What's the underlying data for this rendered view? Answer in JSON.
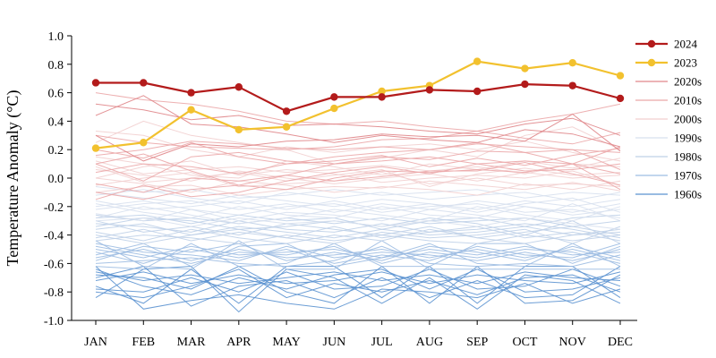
{
  "chart_data": {
    "type": "line",
    "title": "",
    "xlabel": "",
    "ylabel": "Temperature Anomaly (°C)",
    "categories": [
      "JAN",
      "FEB",
      "MAR",
      "APR",
      "MAY",
      "JUN",
      "JUL",
      "AUG",
      "SEP",
      "OCT",
      "NOV",
      "DEC"
    ],
    "ylim": [
      -1.0,
      1.0
    ],
    "yticks": [
      "-1.0",
      "-0.8",
      "-0.6",
      "-0.4",
      "-0.2",
      "0.0",
      "0.2",
      "0.4",
      "0.6",
      "0.8",
      "1.0"
    ],
    "grid": false,
    "legend_position": "right",
    "series": [
      {
        "name": "2024",
        "color": "#b31b1b",
        "markers": true,
        "values": [
          0.67,
          0.67,
          0.6,
          0.64,
          0.47,
          0.57,
          0.57,
          0.62,
          0.61,
          0.66,
          0.65,
          0.56
        ]
      },
      {
        "name": "2023",
        "color": "#f2c12e",
        "markers": true,
        "values": [
          0.21,
          0.25,
          0.48,
          0.34,
          0.36,
          0.49,
          0.61,
          0.65,
          0.82,
          0.77,
          0.81,
          0.72
        ]
      },
      {
        "name": "2020s",
        "color": "#e0868a",
        "markers": false,
        "values": [
          [
            0.52,
            0.48,
            0.41,
            0.44,
            0.37,
            0.38,
            0.36,
            0.33,
            0.31,
            0.38,
            0.42,
            0.3
          ],
          [
            0.44,
            0.58,
            0.38,
            0.36,
            0.31,
            0.25,
            0.3,
            0.27,
            0.25,
            0.34,
            0.31,
            0.22
          ],
          [
            0.3,
            0.12,
            0.24,
            0.22,
            0.26,
            0.27,
            0.31,
            0.29,
            0.3,
            0.26,
            0.45,
            0.19
          ]
        ]
      },
      {
        "name": "2010s",
        "color": "#eba7a8",
        "markers": false,
        "values": [
          [
            0.6,
            0.55,
            0.52,
            0.47,
            0.4,
            0.38,
            0.4,
            0.36,
            0.33,
            0.4,
            0.45,
            0.52
          ],
          [
            0.3,
            0.25,
            0.22,
            0.21,
            0.2,
            0.22,
            0.27,
            0.28,
            0.33,
            0.28,
            0.24,
            0.32
          ],
          [
            0.16,
            0.2,
            0.26,
            0.24,
            0.21,
            0.2,
            0.22,
            0.2,
            0.24,
            0.22,
            0.2,
            0.18
          ],
          [
            0.1,
            -0.02,
            0.15,
            0.18,
            0.12,
            0.1,
            0.15,
            0.13,
            0.19,
            0.18,
            0.2,
            0.06
          ],
          [
            0.04,
            0.1,
            0.08,
            0.03,
            0.1,
            0.15,
            0.18,
            0.2,
            0.25,
            0.18,
            0.1,
            0.22
          ],
          [
            -0.04,
            -0.1,
            0.0,
            -0.02,
            0.02,
            0.1,
            0.12,
            0.15,
            0.1,
            0.12,
            0.1,
            0.03
          ],
          [
            0.1,
            0.17,
            0.05,
            -0.05,
            -0.08,
            0.0,
            0.05,
            0.04,
            0.06,
            0.04,
            0.1,
            -0.08
          ],
          [
            -0.1,
            -0.15,
            -0.08,
            -0.05,
            0.02,
            -0.02,
            0.01,
            0.05,
            0.05,
            0.11,
            0.03,
            -0.05
          ],
          [
            -0.15,
            -0.05,
            -0.13,
            -0.1,
            -0.02,
            0.04,
            0.08,
            0.03,
            0.1,
            0.05,
            0.06,
            0.1
          ],
          [
            0.2,
            0.14,
            0.25,
            0.15,
            0.1,
            0.12,
            0.16,
            0.08,
            0.14,
            0.09,
            0.16,
            0.21
          ]
        ]
      },
      {
        "name": "2000s",
        "color": "#f2cfcf",
        "markers": false,
        "values": [
          [
            0.0,
            0.08,
            0.12,
            0.02,
            0.06,
            0.03,
            -0.03,
            0.0,
            0.02,
            0.0,
            0.05,
            -0.05
          ],
          [
            0.06,
            0.02,
            -0.02,
            0.05,
            0.0,
            -0.04,
            0.0,
            0.03,
            -0.02,
            0.04,
            0.0,
            0.02
          ],
          [
            -0.05,
            0.0,
            0.04,
            -0.06,
            -0.04,
            -0.02,
            0.04,
            -0.04,
            0.0,
            -0.05,
            -0.04,
            -0.06
          ],
          [
            0.12,
            0.03,
            0.06,
            0.08,
            0.04,
            0.06,
            0.09,
            0.05,
            0.08,
            0.03,
            0.1,
            0.08
          ],
          [
            -0.1,
            -0.06,
            -0.05,
            -0.12,
            -0.08,
            -0.06,
            -0.07,
            -0.02,
            -0.05,
            -0.08,
            -0.03,
            -0.09
          ],
          [
            0.15,
            0.1,
            0.02,
            0.0,
            0.12,
            0.08,
            0.02,
            0.1,
            0.06,
            0.12,
            0.07,
            0.14
          ],
          [
            0.33,
            0.3,
            0.2,
            0.15,
            0.22,
            0.18,
            0.22,
            0.24,
            0.2,
            0.26,
            0.18,
            0.12
          ],
          [
            0.25,
            0.4,
            0.3,
            0.25,
            0.2,
            0.1,
            0.14,
            0.2,
            0.15,
            0.3,
            0.36,
            0.2
          ],
          [
            0.0,
            -0.04,
            -0.1,
            -0.02,
            -0.05,
            -0.1,
            -0.06,
            -0.08,
            -0.12,
            -0.04,
            -0.08,
            -0.02
          ],
          [
            0.08,
            -0.03,
            0.0,
            0.04,
            -0.02,
            0.02,
            0.06,
            -0.06,
            0.03,
            0.07,
            0.02,
            0.04
          ]
        ]
      },
      {
        "name": "1990s",
        "color": "#d7e0ee",
        "markers": false,
        "values": [
          [
            -0.1,
            -0.14,
            -0.18,
            -0.12,
            -0.16,
            -0.2,
            -0.15,
            -0.18,
            -0.22,
            -0.16,
            -0.2,
            -0.15
          ],
          [
            -0.2,
            -0.16,
            -0.22,
            -0.26,
            -0.2,
            -0.18,
            -0.24,
            -0.2,
            -0.18,
            -0.24,
            -0.22,
            -0.28
          ],
          [
            -0.18,
            -0.24,
            -0.28,
            -0.2,
            -0.26,
            -0.28,
            -0.2,
            -0.26,
            -0.28,
            -0.2,
            -0.26,
            -0.22
          ],
          [
            -0.25,
            -0.3,
            -0.22,
            -0.3,
            -0.24,
            -0.26,
            -0.3,
            -0.22,
            -0.26,
            -0.3,
            -0.18,
            -0.3
          ],
          [
            -0.12,
            -0.08,
            -0.14,
            -0.18,
            -0.1,
            -0.14,
            -0.1,
            -0.15,
            -0.12,
            -0.1,
            -0.16,
            -0.1
          ],
          [
            -0.3,
            -0.28,
            -0.34,
            -0.28,
            -0.32,
            -0.3,
            -0.34,
            -0.3,
            -0.34,
            -0.28,
            -0.32,
            -0.36
          ],
          [
            -0.06,
            -0.1,
            -0.08,
            -0.14,
            -0.12,
            -0.08,
            -0.12,
            -0.1,
            -0.08,
            -0.14,
            -0.1,
            -0.12
          ],
          [
            -0.22,
            -0.18,
            -0.16,
            -0.22,
            -0.18,
            -0.24,
            -0.18,
            -0.22,
            -0.16,
            -0.2,
            -0.24,
            -0.18
          ],
          [
            -0.16,
            -0.22,
            -0.2,
            -0.16,
            -0.22,
            -0.16,
            -0.22,
            -0.18,
            -0.24,
            -0.18,
            -0.14,
            -0.24
          ],
          [
            -0.28,
            -0.2,
            -0.26,
            -0.32,
            -0.28,
            -0.22,
            -0.26,
            -0.3,
            -0.2,
            -0.26,
            -0.3,
            -0.2
          ]
        ]
      },
      {
        "name": "1980s",
        "color": "#bfd0e8",
        "markers": false,
        "values": [
          [
            -0.36,
            -0.32,
            -0.4,
            -0.34,
            -0.38,
            -0.42,
            -0.36,
            -0.4,
            -0.38,
            -0.34,
            -0.4,
            -0.36
          ],
          [
            -0.3,
            -0.38,
            -0.34,
            -0.4,
            -0.32,
            -0.36,
            -0.4,
            -0.34,
            -0.42,
            -0.38,
            -0.34,
            -0.4
          ],
          [
            -0.42,
            -0.36,
            -0.44,
            -0.38,
            -0.42,
            -0.34,
            -0.42,
            -0.38,
            -0.34,
            -0.42,
            -0.38,
            -0.44
          ],
          [
            -0.26,
            -0.3,
            -0.28,
            -0.32,
            -0.28,
            -0.32,
            -0.28,
            -0.32,
            -0.3,
            -0.28,
            -0.34,
            -0.3
          ],
          [
            -0.38,
            -0.44,
            -0.36,
            -0.42,
            -0.46,
            -0.4,
            -0.44,
            -0.36,
            -0.42,
            -0.46,
            -0.4,
            -0.38
          ],
          [
            -0.32,
            -0.34,
            -0.38,
            -0.3,
            -0.36,
            -0.38,
            -0.32,
            -0.38,
            -0.36,
            -0.32,
            -0.36,
            -0.42
          ],
          [
            -0.44,
            -0.4,
            -0.42,
            -0.46,
            -0.4,
            -0.44,
            -0.4,
            -0.44,
            -0.46,
            -0.4,
            -0.44,
            -0.4
          ],
          [
            -0.28,
            -0.26,
            -0.32,
            -0.26,
            -0.3,
            -0.28,
            -0.36,
            -0.3,
            -0.28,
            -0.34,
            -0.28,
            -0.26
          ],
          [
            -0.4,
            -0.46,
            -0.4,
            -0.36,
            -0.42,
            -0.46,
            -0.38,
            -0.42,
            -0.4,
            -0.36,
            -0.46,
            -0.34
          ],
          [
            -0.34,
            -0.28,
            -0.3,
            -0.36,
            -0.34,
            -0.3,
            -0.34,
            -0.28,
            -0.32,
            -0.4,
            -0.3,
            -0.46
          ]
        ]
      },
      {
        "name": "1970s",
        "color": "#9dbde2",
        "markers": false,
        "values": [
          [
            -0.5,
            -0.56,
            -0.48,
            -0.54,
            -0.52,
            -0.5,
            -0.56,
            -0.5,
            -0.54,
            -0.48,
            -0.54,
            -0.52
          ],
          [
            -0.56,
            -0.5,
            -0.58,
            -0.5,
            -0.56,
            -0.54,
            -0.5,
            -0.56,
            -0.5,
            -0.56,
            -0.5,
            -0.58
          ],
          [
            -0.46,
            -0.52,
            -0.54,
            -0.58,
            -0.48,
            -0.56,
            -0.52,
            -0.54,
            -0.58,
            -0.52,
            -0.58,
            -0.5
          ],
          [
            -0.58,
            -0.48,
            -0.52,
            -0.46,
            -0.58,
            -0.52,
            -0.58,
            -0.48,
            -0.52,
            -0.58,
            -0.48,
            -0.56
          ],
          [
            -0.52,
            -0.6,
            -0.5,
            -0.56,
            -0.5,
            -0.6,
            -0.54,
            -0.58,
            -0.48,
            -0.54,
            -0.56,
            -0.46
          ],
          [
            -0.48,
            -0.54,
            -0.6,
            -0.52,
            -0.54,
            -0.48,
            -0.6,
            -0.52,
            -0.56,
            -0.5,
            -0.52,
            -0.6
          ],
          [
            -0.6,
            -0.58,
            -0.56,
            -0.6,
            -0.62,
            -0.58,
            -0.48,
            -0.6,
            -0.62,
            -0.6,
            -0.62,
            -0.54
          ],
          [
            -0.54,
            -0.46,
            -0.62,
            -0.48,
            -0.46,
            -0.62,
            -0.56,
            -0.46,
            -0.6,
            -0.62,
            -0.46,
            -0.62
          ],
          [
            -0.62,
            -0.64,
            -0.46,
            -0.62,
            -0.6,
            -0.46,
            -0.62,
            -0.62,
            -0.46,
            -0.46,
            -0.6,
            -0.48
          ],
          [
            -0.44,
            -0.62,
            -0.64,
            -0.44,
            -0.64,
            -0.64,
            -0.44,
            -0.64,
            -0.64,
            -0.64,
            -0.64,
            -0.64
          ]
        ]
      },
      {
        "name": "1960s",
        "color": "#5b92d0",
        "markers": false,
        "values": [
          [
            -0.66,
            -0.72,
            -0.68,
            -0.74,
            -0.7,
            -0.66,
            -0.72,
            -0.68,
            -0.74,
            -0.66,
            -0.7,
            -0.72
          ],
          [
            -0.72,
            -0.66,
            -0.74,
            -0.68,
            -0.74,
            -0.72,
            -0.66,
            -0.74,
            -0.68,
            -0.72,
            -0.74,
            -0.66
          ],
          [
            -0.78,
            -0.8,
            -0.7,
            -0.8,
            -0.66,
            -0.78,
            -0.76,
            -0.64,
            -0.78,
            -0.76,
            -0.64,
            -0.76
          ],
          [
            -0.64,
            -0.76,
            -0.82,
            -0.7,
            -0.78,
            -0.68,
            -0.64,
            -0.78,
            -0.64,
            -0.8,
            -0.78,
            -0.7
          ],
          [
            -0.8,
            -0.84,
            -0.76,
            -0.64,
            -0.84,
            -0.74,
            -0.8,
            -0.72,
            -0.82,
            -0.7,
            -0.68,
            -0.8
          ],
          [
            -0.7,
            -0.62,
            -0.9,
            -0.76,
            -0.72,
            -0.84,
            -0.7,
            -0.84,
            -0.72,
            -0.84,
            -0.82,
            -0.62
          ],
          [
            -0.76,
            -0.88,
            -0.64,
            -0.88,
            -0.62,
            -0.62,
            -0.84,
            -0.62,
            -0.88,
            -0.62,
            -0.62,
            -0.84
          ],
          [
            -0.68,
            -0.7,
            -0.78,
            -0.62,
            -0.8,
            -0.88,
            -0.62,
            -0.88,
            -0.62,
            -0.88,
            -0.86,
            -0.68
          ],
          [
            -0.84,
            -0.64,
            -0.62,
            -0.94,
            -0.64,
            -0.7,
            -0.88,
            -0.7,
            -0.92,
            -0.68,
            -0.72,
            -0.88
          ],
          [
            -0.62,
            -0.92,
            -0.86,
            -0.82,
            -0.88,
            -0.92,
            -0.78,
            -0.8,
            -0.84,
            -0.74,
            -0.88,
            -0.78
          ]
        ]
      }
    ]
  }
}
